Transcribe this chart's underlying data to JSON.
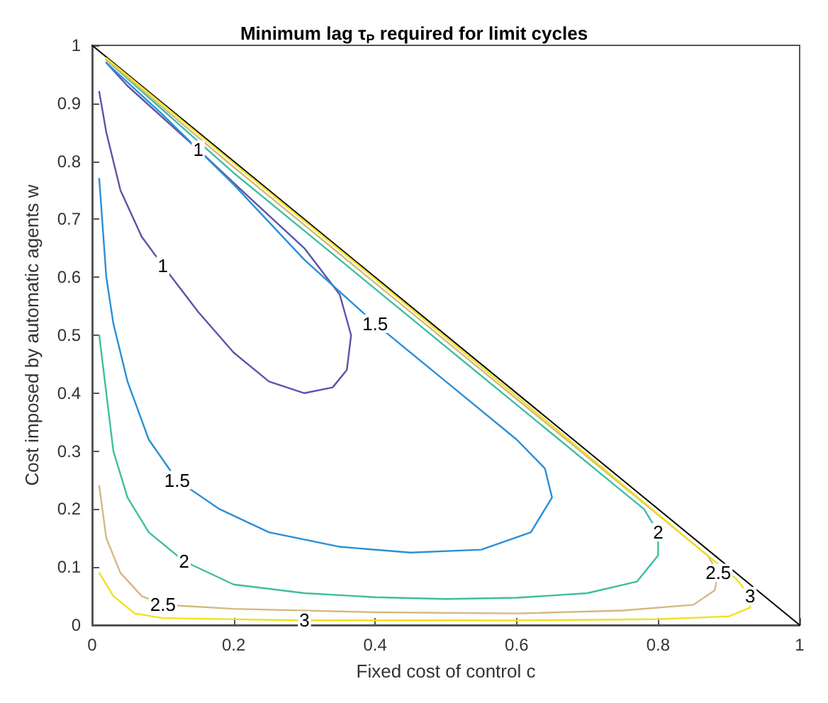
{
  "chart_data": {
    "type": "line",
    "title": "Minimum lag τ$_{P}$ required for limit cycles",
    "xlabel": "Fixed cost of control c",
    "ylabel": "Cost imposed by automatic agents w",
    "xlim": [
      0,
      1
    ],
    "ylim": [
      0,
      1
    ],
    "xticks": [
      0,
      0.2,
      0.4,
      0.6,
      0.8,
      1
    ],
    "yticks": [
      0,
      0.1,
      0.2,
      0.3,
      0.4,
      0.5,
      0.6,
      0.7,
      0.8,
      0.9,
      1
    ],
    "grid": false,
    "legend": false,
    "marker": "none",
    "line_style": "solid",
    "series": [
      {
        "name": "1",
        "color": "#5a54a8",
        "x": [
          0.01,
          0.02,
          0.04,
          0.07,
          0.1,
          0.15,
          0.2,
          0.25,
          0.3,
          0.34,
          0.36,
          0.366,
          0.35,
          0.3,
          0.22,
          0.15,
          0.05,
          0.02
        ],
        "values": [
          0.92,
          0.85,
          0.75,
          0.67,
          0.62,
          0.54,
          0.47,
          0.42,
          0.4,
          0.41,
          0.44,
          0.5,
          0.57,
          0.65,
          0.74,
          0.82,
          0.93,
          0.97
        ]
      },
      {
        "name": "1.5",
        "color": "#2b8fd6",
        "x": [
          0.01,
          0.02,
          0.03,
          0.05,
          0.08,
          0.12,
          0.18,
          0.25,
          0.35,
          0.45,
          0.55,
          0.62,
          0.65,
          0.64,
          0.6,
          0.5,
          0.4,
          0.3,
          0.2,
          0.1,
          0.02
        ],
        "values": [
          0.77,
          0.6,
          0.52,
          0.42,
          0.32,
          0.25,
          0.2,
          0.16,
          0.135,
          0.125,
          0.13,
          0.16,
          0.22,
          0.27,
          0.32,
          0.42,
          0.52,
          0.63,
          0.76,
          0.88,
          0.97
        ]
      },
      {
        "name": "2",
        "color": "#3cbfa0",
        "x": [
          0.01,
          0.02,
          0.03,
          0.05,
          0.08,
          0.13,
          0.2,
          0.3,
          0.4,
          0.5,
          0.6,
          0.7,
          0.77,
          0.8,
          0.8,
          0.78,
          0.75,
          0.6,
          0.4,
          0.2,
          0.02
        ],
        "values": [
          0.5,
          0.4,
          0.3,
          0.22,
          0.16,
          0.11,
          0.07,
          0.055,
          0.048,
          0.045,
          0.047,
          0.055,
          0.075,
          0.12,
          0.16,
          0.2,
          0.23,
          0.38,
          0.58,
          0.78,
          0.975
        ]
      },
      {
        "name": "2.5",
        "color": "#d3b980",
        "x": [
          0.01,
          0.02,
          0.04,
          0.07,
          0.1,
          0.2,
          0.4,
          0.6,
          0.75,
          0.85,
          0.88,
          0.885,
          0.87,
          0.8,
          0.6,
          0.4,
          0.2,
          0.02
        ],
        "values": [
          0.24,
          0.15,
          0.09,
          0.05,
          0.035,
          0.028,
          0.022,
          0.02,
          0.025,
          0.035,
          0.06,
          0.09,
          0.12,
          0.19,
          0.39,
          0.59,
          0.79,
          0.975
        ]
      },
      {
        "name": "3",
        "color": "#f0e020",
        "x": [
          0.01,
          0.03,
          0.06,
          0.1,
          0.3,
          0.6,
          0.8,
          0.9,
          0.93,
          0.93,
          0.91,
          0.85,
          0.6,
          0.4,
          0.2,
          0.02
        ],
        "values": [
          0.09,
          0.05,
          0.02,
          0.012,
          0.008,
          0.008,
          0.01,
          0.015,
          0.03,
          0.05,
          0.08,
          0.14,
          0.395,
          0.597,
          0.797,
          0.978
        ]
      },
      {
        "color": "#000000",
        "x": [
          0,
          1
        ],
        "values": [
          1,
          0
        ]
      }
    ]
  }
}
